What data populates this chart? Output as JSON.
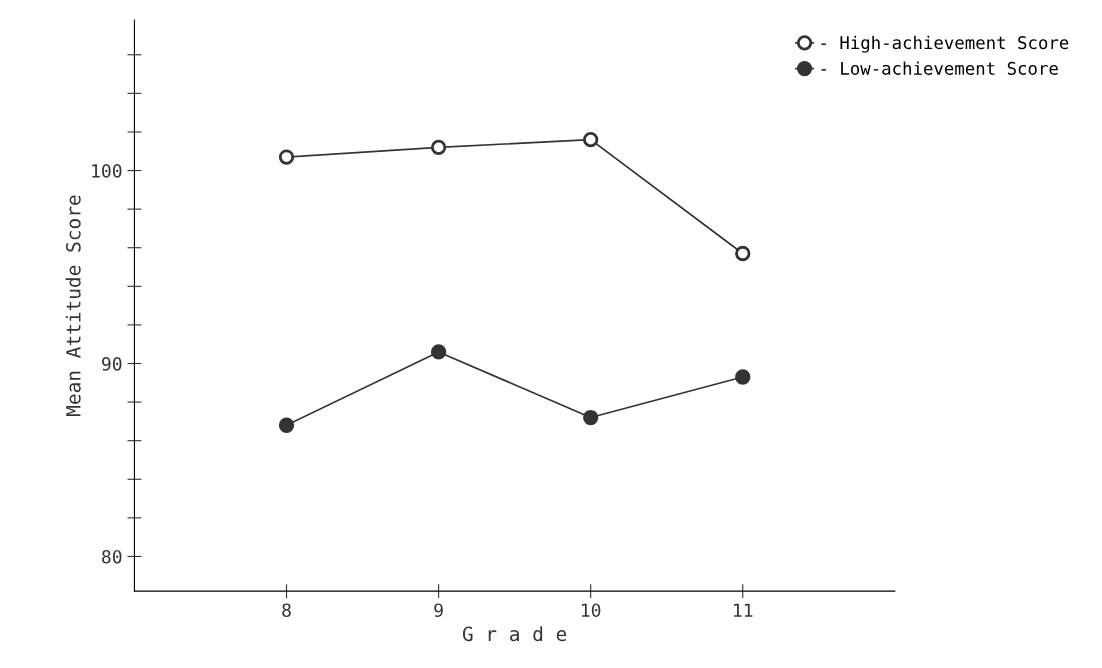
{
  "chart_data": {
    "type": "line",
    "xlabel": "G r a d e",
    "ylabel": "Mean Attitude Score",
    "x": [
      8,
      9,
      10,
      11
    ],
    "xlim": [
      7,
      12
    ],
    "xticks": [
      8,
      9,
      10,
      11
    ],
    "ylim": [
      78.2,
      107.8
    ],
    "yticks": [
      80,
      {
        "value": 82,
        "label": null
      },
      {
        "value": 84,
        "label": null
      },
      {
        "value": 86,
        "label": null
      },
      {
        "value": 88,
        "label": null
      },
      90,
      {
        "value": 92,
        "label": null
      },
      {
        "value": 94,
        "label": null
      },
      {
        "value": 96,
        "label": null
      },
      {
        "value": 98,
        "label": null
      },
      100,
      {
        "value": 102,
        "label": null
      },
      {
        "value": 104,
        "label": null
      },
      {
        "value": 106,
        "label": null
      }
    ],
    "series": [
      {
        "name": "- High-achievement Score",
        "color": "#333333",
        "marker": "circle_open",
        "values": [
          100.7,
          101.2,
          101.6,
          95.7
        ]
      },
      {
        "name": "- Low-achievement Score",
        "color": "#333333",
        "marker": "circle",
        "values": [
          86.8,
          90.6,
          87.2,
          89.3
        ]
      }
    ],
    "legend": "top right",
    "grid": false
  }
}
